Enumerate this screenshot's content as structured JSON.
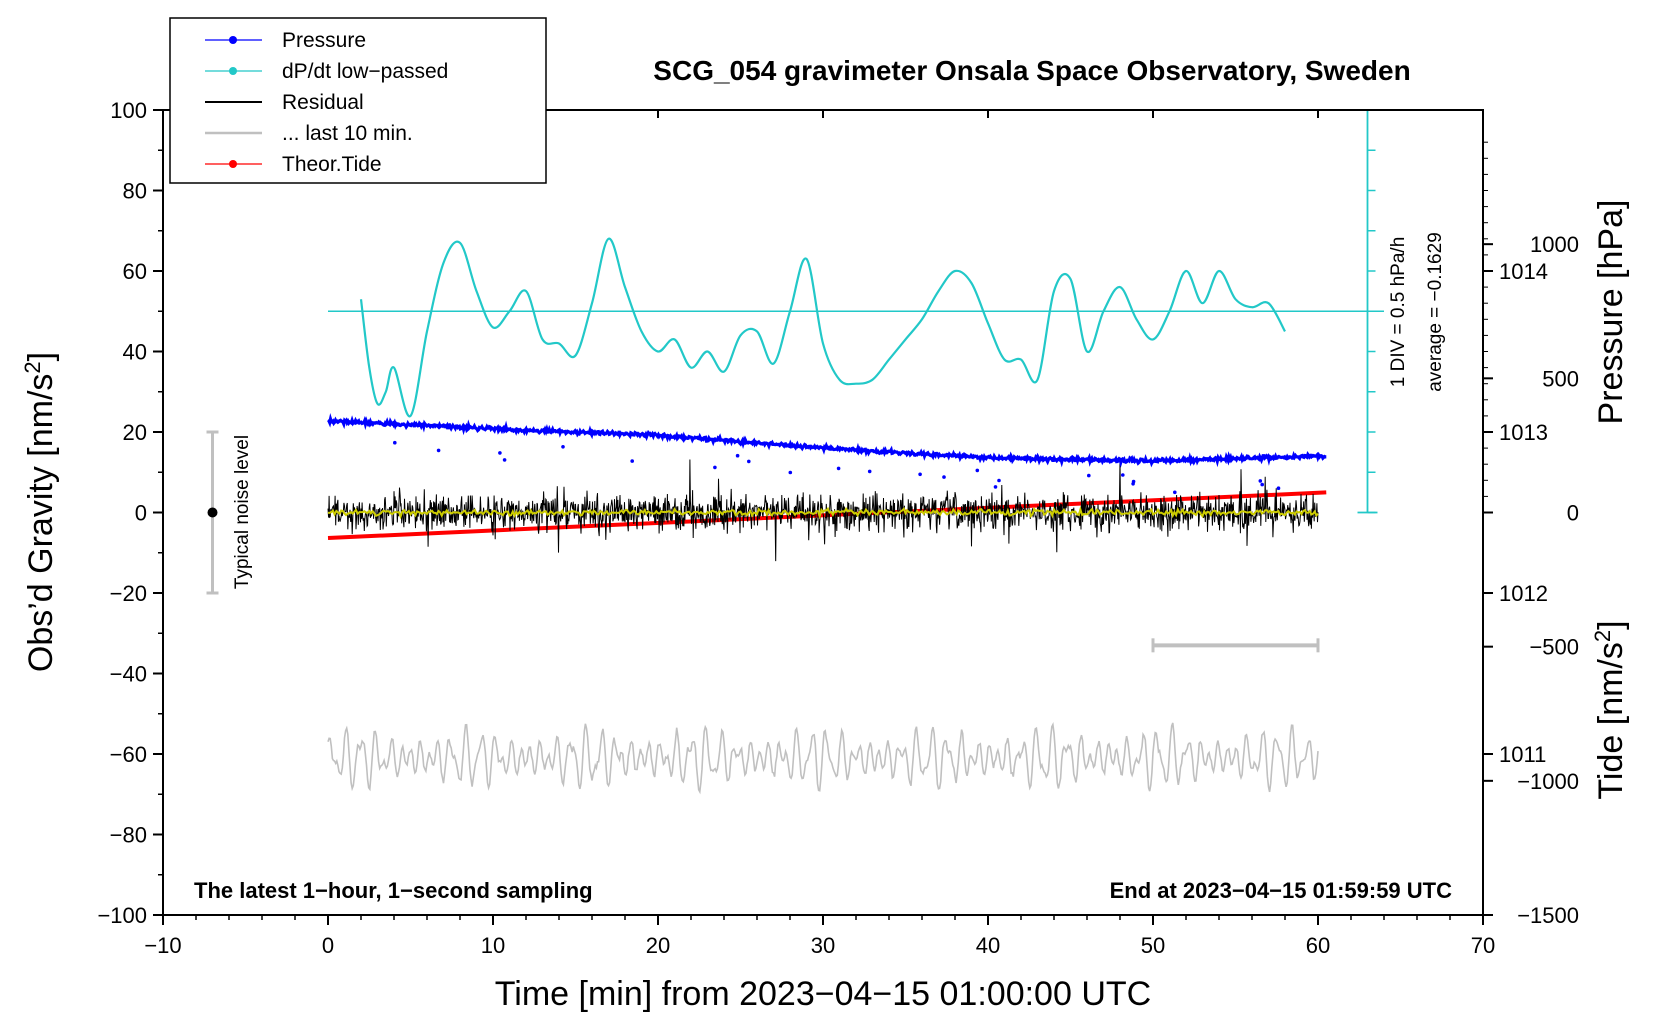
{
  "chart_data": {
    "type": "line",
    "title": "SCG_054 gravimeter Onsala Space Observatory, Sweden",
    "xlabel": "Time [min] from 2023−04−15 01:00:00 UTC",
    "ylabel_left_main": "Obs’d Gravity [nm/s",
    "ylabel_left_sup": "2",
    "ylabel_left_end": "]",
    "ylabel_right_pressure": "Pressure [hPa]",
    "ylabel_right_tide_main": "Tide [nm/s",
    "ylabel_right_tide_sup": "2",
    "ylabel_right_tide_end": "]",
    "xlim": [
      -10,
      70
    ],
    "ylim": [
      -100,
      100
    ],
    "pressure_lim": [
      1010,
      1015
    ],
    "tide_lim": [
      -1500,
      1500
    ],
    "x_ticks": [
      "−10",
      "0",
      "10",
      "20",
      "30",
      "40",
      "50",
      "60",
      "70"
    ],
    "y_ticks": [
      "−100",
      "−80",
      "−60",
      "−40",
      "−20",
      "0",
      "20",
      "40",
      "60",
      "80",
      "100"
    ],
    "pressure_ticks": [
      "1011",
      "1012",
      "1013",
      "1014"
    ],
    "tide_ticks": [
      "−1500",
      "−1000",
      "−500",
      "0",
      "500",
      "1000"
    ],
    "legend": [
      {
        "label": "Pressure",
        "color": "#0000ff",
        "marker": true
      },
      {
        "label": "dP/dt low−passed",
        "color": "#22c8c8",
        "marker": true
      },
      {
        "label": "Residual",
        "color": "#000000",
        "marker": false
      },
      {
        "label": "... last 10 min.",
        "color": "#c0c0c0",
        "marker": false
      },
      {
        "label": "Theor.Tide",
        "color": "#ff0000",
        "marker": true
      }
    ],
    "annotations": {
      "noise_level": "Typical noise level",
      "dpdt_scale": "1 DIV = 0.5 hPa/h",
      "dpdt_average": "average = −0.1629",
      "footer_left": "The latest 1−hour, 1−second sampling",
      "footer_right": "End at 2023−04−15 01:59:59 UTC"
    },
    "series": [
      {
        "name": "Pressure",
        "axis": "pressure",
        "x": [
          0,
          10,
          20,
          30,
          40,
          50,
          60
        ],
        "values": [
          1013.07,
          1013.02,
          1012.98,
          1012.9,
          1012.84,
          1012.82,
          1012.85
        ]
      },
      {
        "name": "dP/dt low-passed",
        "axis": "gravity",
        "x": [
          2,
          2.5,
          3,
          3.5,
          4,
          5,
          6,
          7,
          8,
          9,
          10,
          11,
          12,
          13,
          14,
          15,
          16,
          17,
          18,
          19,
          20,
          21,
          22,
          23,
          24,
          25,
          26,
          27,
          28,
          29,
          30,
          31,
          32,
          33,
          34,
          35,
          36,
          37,
          38,
          39,
          40,
          41,
          42,
          43,
          44,
          45,
          46,
          47,
          48,
          49,
          50,
          51,
          52,
          53,
          54,
          55,
          56,
          57,
          58
        ],
        "values": [
          53,
          36,
          27,
          30,
          36,
          24,
          45,
          62,
          67,
          55,
          46,
          50,
          55,
          43,
          42,
          39,
          52,
          68,
          56,
          45,
          40,
          43,
          36,
          40,
          35,
          44,
          45,
          37,
          50,
          63,
          42,
          33,
          32,
          33,
          38,
          43,
          48,
          55,
          60,
          57,
          47,
          38,
          38,
          33,
          55,
          58,
          40,
          50,
          56,
          48,
          43,
          50,
          60,
          52,
          60,
          53,
          51,
          52,
          45
        ]
      },
      {
        "name": "dP/dt reference",
        "axis": "gravity",
        "x": [
          0,
          64
        ],
        "values": [
          50,
          50
        ]
      },
      {
        "name": "Residual",
        "axis": "gravity",
        "x": [
          0,
          60
        ],
        "values": [
          0,
          0
        ],
        "noise_amplitude_nm_s2": 8
      },
      {
        "name": "Residual smoothed",
        "axis": "gravity",
        "x": [
          0,
          60
        ],
        "values": [
          0,
          0
        ],
        "color": "#cccc00"
      },
      {
        "name": "... last 10 min.",
        "axis": "gravity",
        "x": [
          0,
          60
        ],
        "values": [
          -61,
          -61
        ],
        "oscillation_amplitude_nm_s2": 8
      },
      {
        "name": "Theor.Tide",
        "axis": "tide",
        "x": [
          0,
          60
        ],
        "values": [
          -95,
          75
        ]
      },
      {
        "name": "Typical noise level",
        "axis": "gravity",
        "x": [
          -7,
          -7
        ],
        "values": [
          -20,
          20
        ],
        "center": 0
      },
      {
        "name": "10 min bar",
        "axis": "gravity",
        "x": [
          50,
          60
        ],
        "values": [
          -33,
          -33
        ]
      }
    ]
  }
}
